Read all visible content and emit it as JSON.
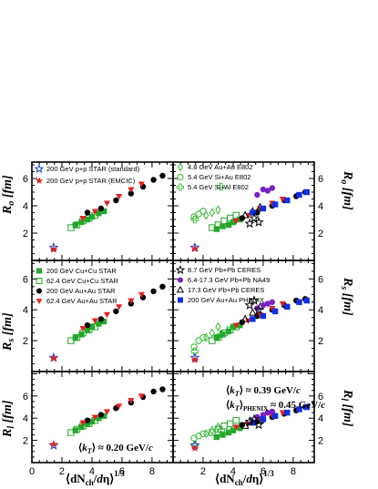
{
  "chart_data": {
    "type": "scatter",
    "xlim": [
      0,
      9.4
    ],
    "xticks": [
      "0",
      "2",
      "4",
      "6",
      "8"
    ],
    "xlabel": "⟨dN_ch/dη⟩^1/3",
    "panels": [
      {
        "id": "ro-left",
        "ylabel": "R_o [fm]",
        "ylim": [
          0,
          7.2
        ],
        "yticks": [
          "2",
          "4",
          "6"
        ]
      },
      {
        "id": "ro-right",
        "ylabel": "R_o [fm]",
        "ylim": [
          0,
          7.2
        ],
        "yticks": [
          "2",
          "4",
          "6"
        ]
      },
      {
        "id": "rs-left",
        "ylabel": "R_s [fm]",
        "ylim": [
          0,
          7.2
        ],
        "yticks": [
          "2",
          "4",
          "6"
        ]
      },
      {
        "id": "rs-right",
        "ylabel": "R_s [fm]",
        "ylim": [
          0,
          7.2
        ],
        "yticks": [
          "2",
          "4",
          "6"
        ]
      },
      {
        "id": "rl-left",
        "ylabel": "R_l [fm]",
        "ylim": [
          0,
          8.2
        ],
        "yticks": [
          "2",
          "4",
          "6"
        ]
      },
      {
        "id": "rl-right",
        "ylabel": "R_l [fm]",
        "ylim": [
          0,
          8.2
        ],
        "yticks": [
          "2",
          "4",
          "6"
        ]
      }
    ],
    "legend_left_top": [
      {
        "label": "200 GeV p+p STAR (standard)",
        "marker": "star-open",
        "color": "#1f3fd0"
      },
      {
        "label": "200 GeV p+p STAR (EMCIC)",
        "marker": "star",
        "color": "#e8201e"
      }
    ],
    "legend_left_mid": [
      {
        "label": "200 GeV Cu+Cu STAR",
        "marker": "square",
        "color": "#22a82a"
      },
      {
        "label": "62.4 GeV Cu+Cu STAR",
        "marker": "square-open",
        "color": "#22a82a"
      },
      {
        "label": "200 GeV Au+Au STAR",
        "marker": "circle",
        "color": "#000000"
      },
      {
        "label": "62.4 GeV Au+Au STAR",
        "marker": "triangle-down",
        "color": "#e8201e"
      }
    ],
    "legend_right_top": [
      {
        "label": "4.8 GeV Au+Au E802",
        "marker": "diamond-open",
        "color": "#33bb33"
      },
      {
        "label": "5.4 GeV Si+Au E802",
        "marker": "circle-open",
        "color": "#33bb33"
      },
      {
        "label": "5.4 GeV Si+Al E802",
        "marker": "cross-open",
        "color": "#33bb33"
      }
    ],
    "legend_right_mid": [
      {
        "label": "8.7 GeV Pb+Pb CERES",
        "marker": "star-open",
        "color": "#000000"
      },
      {
        "label": "6.4-17.3 GeV Pb+Pb NA49",
        "marker": "circle",
        "color": "#7a20c8"
      },
      {
        "label": "17.3 GeV Pb+Pb CERES",
        "marker": "triangle-open",
        "color": "#000000"
      },
      {
        "label": "200 GeV Au+Au PHENIX",
        "marker": "square",
        "color": "#1030e0"
      }
    ],
    "annotation_left_bottom": "⟨k_T⟩ ≈ 0.20 GeV/c",
    "annotation_right_bottom_1": "⟨k_T⟩ ≈ 0.39 GeV/c",
    "annotation_right_bottom_2": "⟨k_T⟩_PHENIX ≈ 0.45 GeV/c",
    "series": {
      "pp_standard": {
        "name": "200 GeV p+p STAR (standard)",
        "x": [
          1.45
        ],
        "ro": [
          0.95
        ],
        "rs": [
          0.9
        ],
        "rl": [
          1.55
        ]
      },
      "pp_emcic": {
        "name": "200 GeV p+p STAR (EMCIC)",
        "x": [
          1.45
        ],
        "ro": [
          0.8
        ],
        "rs": [
          0.85
        ],
        "rl": [
          1.65
        ]
      },
      "cucu200": {
        "name": "200 GeV Cu+Cu STAR",
        "x": [
          2.9,
          3.3,
          3.7,
          4.0,
          4.45,
          4.8
        ],
        "ro": [
          2.6,
          2.8,
          3.0,
          3.2,
          3.45,
          3.6
        ],
        "rs": [
          2.2,
          2.4,
          2.7,
          2.9,
          3.1,
          3.25
        ],
        "rl": [
          2.9,
          3.2,
          3.5,
          3.7,
          4.0,
          4.2
        ]
      },
      "cucu62": {
        "name": "62.4 GeV Cu+Cu STAR",
        "x": [
          2.6,
          3.0,
          3.4,
          3.8,
          4.2
        ],
        "ro": [
          2.4,
          2.6,
          2.9,
          3.1,
          3.3
        ],
        "rs": [
          2.0,
          2.2,
          2.5,
          2.7,
          2.9
        ],
        "rl": [
          2.7,
          3.0,
          3.3,
          3.5,
          3.8
        ]
      },
      "auau200": {
        "name": "200 GeV Au+Au STAR",
        "x": [
          3.7,
          4.6,
          5.6,
          6.6,
          7.4,
          8.1,
          8.7
        ],
        "ro": [
          3.5,
          3.8,
          4.4,
          4.9,
          5.4,
          5.9,
          6.2
        ],
        "rs": [
          3.0,
          3.4,
          3.9,
          4.4,
          4.8,
          5.2,
          5.5
        ],
        "rl": [
          3.8,
          4.3,
          4.9,
          5.4,
          5.9,
          6.4,
          6.6
        ]
      },
      "auau62": {
        "name": "62.4 GeV Au+Au STAR",
        "x": [
          3.4,
          4.2,
          5.0,
          5.8,
          6.6,
          7.3
        ],
        "ro": [
          3.1,
          3.6,
          4.2,
          4.7,
          5.2,
          5.6
        ],
        "rs": [
          2.8,
          3.3,
          3.7,
          4.2,
          4.6,
          5.0
        ],
        "rl": [
          3.6,
          4.1,
          4.6,
          5.1,
          5.6,
          6.0
        ]
      },
      "e802_auau": {
        "name": "4.8 GeV Au+Au E802",
        "x": [
          2.2,
          2.6,
          3.0
        ],
        "ro": [
          3.3,
          3.5,
          3.7
        ],
        "rs": [
          2.2,
          2.5,
          2.9
        ],
        "rl": [
          2.6,
          2.9,
          3.2
        ]
      },
      "e802_siau": {
        "name": "5.4 GeV Si+Au E802",
        "x": [
          1.4,
          1.7,
          2.0
        ],
        "ro": [
          3.2,
          3.4,
          3.6
        ],
        "rs": [
          1.6,
          2.0,
          2.2
        ],
        "rl": [
          2.2,
          2.4,
          2.6
        ]
      },
      "e802_sial": {
        "name": "5.4 GeV Si+Al E802",
        "x": [
          1.45,
          3.2
        ],
        "ro": [
          3.0,
          5.4
        ],
        "rs": [
          1.3,
          2.4
        ],
        "rl": [
          1.6,
          2.9
        ]
      },
      "ceres87": {
        "name": "8.7 GeV Pb+Pb CERES",
        "x": [
          5.1,
          5.4,
          5.7
        ],
        "ro": [
          2.7,
          3.1,
          2.8
        ],
        "rs": [
          4.3,
          4.6,
          4.0
        ],
        "rl": [
          3.7,
          3.9,
          3.4
        ]
      },
      "na49": {
        "name": "6.4-17.3 GeV Pb+Pb NA49",
        "x": [
          5.6,
          6.0,
          6.3,
          6.6
        ],
        "ro": [
          4.8,
          5.2,
          5.1,
          5.3
        ],
        "rs": [
          4.1,
          4.3,
          4.4,
          4.5
        ],
        "rl": [
          4.1,
          4.3,
          4.5,
          4.6
        ]
      },
      "ceres173": {
        "name": "17.3 GeV Pb+Pb CERES",
        "x": [
          4.8,
          5.3,
          5.8
        ],
        "ro": [
          3.3,
          3.6,
          3.9
        ],
        "rs": [
          3.4,
          3.8,
          4.2
        ],
        "rl": [
          3.3,
          3.6,
          3.8
        ]
      },
      "phenix": {
        "name": "200 GeV Au+Au PHENIX",
        "x": [
          5.3,
          6.0,
          6.8,
          7.6,
          8.4,
          8.9
        ],
        "ro": [
          3.5,
          3.8,
          4.1,
          4.4,
          4.8,
          5.0
        ],
        "rs": [
          3.4,
          3.6,
          3.9,
          4.2,
          4.5,
          4.6
        ],
        "rl": [
          3.6,
          3.9,
          4.2,
          4.5,
          4.8,
          5.0
        ]
      },
      "right_pp_emcic": {
        "name": "",
        "x": [
          1.45
        ],
        "ro": [
          0.85
        ],
        "rs": [
          0.75
        ],
        "rl": [
          1.3
        ]
      },
      "right_cucu200": {
        "name": "",
        "x": [
          2.9,
          3.3,
          3.7,
          4.0,
          4.45
        ],
        "ro": [
          2.3,
          2.5,
          2.6,
          2.8,
          3.0
        ],
        "rs": [
          2.2,
          2.4,
          2.6,
          2.9,
          3.0
        ],
        "rl": [
          2.3,
          2.5,
          2.7,
          2.9,
          3.1
        ]
      },
      "right_auau200": {
        "name": "",
        "x": [
          4.6,
          5.6,
          6.6,
          7.4,
          8.2,
          8.8
        ],
        "ro": [
          3.1,
          3.5,
          4.0,
          4.4,
          4.7,
          5.0
        ],
        "rs": [
          3.2,
          3.6,
          4.0,
          4.3,
          4.6,
          4.7
        ],
        "rl": [
          3.4,
          3.7,
          4.1,
          4.4,
          4.7,
          5.0
        ]
      },
      "right_auau62": {
        "name": "",
        "x": [
          4.2,
          5.0,
          5.8,
          6.6,
          7.3
        ],
        "ro": [
          2.9,
          3.3,
          3.8,
          4.2,
          4.5
        ],
        "rs": [
          3.0,
          3.3,
          3.7,
          4.1,
          4.4
        ],
        "rl": [
          3.2,
          3.5,
          3.9,
          4.3,
          4.5
        ]
      }
    }
  },
  "colors": {
    "blue": "#1f3fd0",
    "red": "#e8201e",
    "green": "#22a82a",
    "black": "#000000",
    "purple": "#7a20c8",
    "lightgreen": "#33bb33",
    "phenix": "#1030e0"
  }
}
